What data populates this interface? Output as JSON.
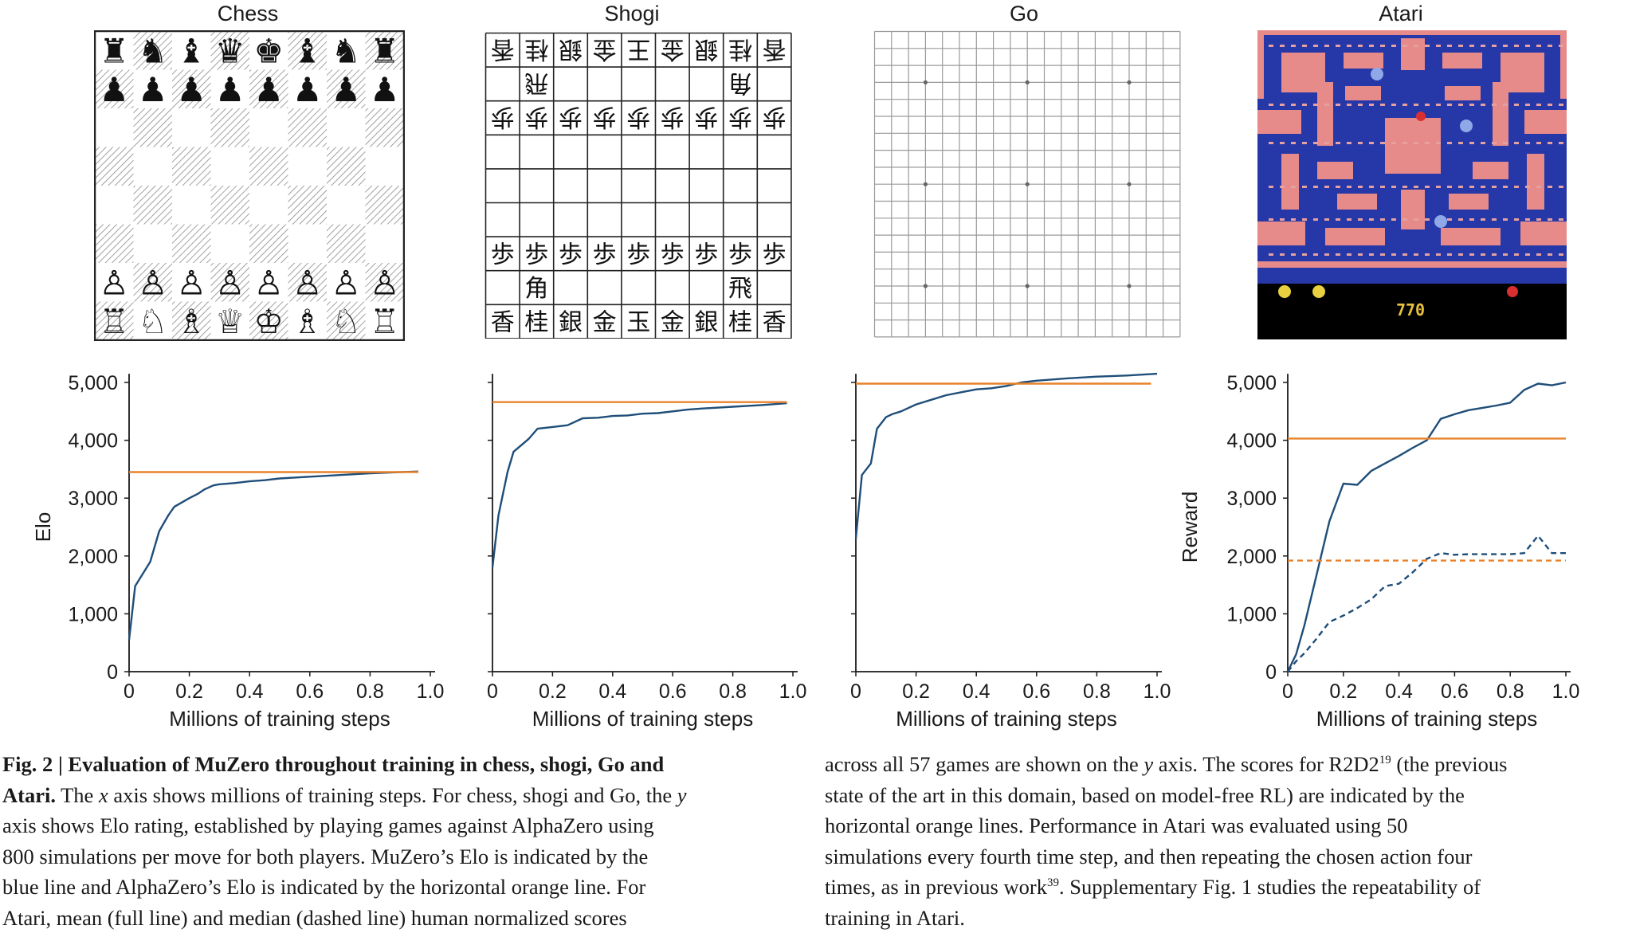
{
  "panels": {
    "chess": {
      "title": "Chess"
    },
    "shogi": {
      "title": "Shogi"
    },
    "go": {
      "title": "Go"
    },
    "atari": {
      "title": "Atari",
      "score": "770"
    }
  },
  "chess_board": {
    "black_back": [
      "♜",
      "♞",
      "♝",
      "♛",
      "♚",
      "♝",
      "♞",
      "♜"
    ],
    "black_pawn": "♟",
    "white_back": [
      "♖",
      "♘",
      "♗",
      "♕",
      "♔",
      "♗",
      "♘",
      "♖"
    ],
    "white_pawn": "♙"
  },
  "shogi_board": {
    "back_rank": [
      "香",
      "桂",
      "銀",
      "金",
      "玉",
      "金",
      "銀",
      "桂",
      "香"
    ],
    "top_back_rank": [
      "香",
      "桂",
      "銀",
      "金",
      "王",
      "金",
      "銀",
      "桂",
      "香"
    ],
    "pawn": "歩",
    "bishop": "角",
    "rook": "飛"
  },
  "colors": {
    "muzero": "#1f4e79",
    "reference": "#e8822a",
    "atari_bg": "#2638a8",
    "atari_wall": "#e68a8a"
  },
  "chart_data": [
    {
      "type": "line",
      "panel": "Chess",
      "xlabel": "Millions of training steps",
      "ylabel": "Elo",
      "xlim": [
        0,
        1.0
      ],
      "ylim": [
        0,
        5000
      ],
      "xticks": [
        "0",
        "0.2",
        "0.4",
        "0.6",
        "0.8",
        "1.0"
      ],
      "yticks": [
        "0",
        "1,000",
        "2,000",
        "3,000",
        "4,000",
        "5,000"
      ],
      "show_yticks": true,
      "series": [
        {
          "style": "solid",
          "color": "#1f4e79",
          "x": [
            0,
            0.02,
            0.07,
            0.1,
            0.13,
            0.15,
            0.2,
            0.23,
            0.25,
            0.28,
            0.3,
            0.35,
            0.4,
            0.45,
            0.5,
            0.6,
            0.7,
            0.8,
            0.9,
            0.96
          ],
          "y": [
            550,
            1480,
            1900,
            2430,
            2700,
            2850,
            3000,
            3080,
            3150,
            3220,
            3240,
            3260,
            3290,
            3310,
            3340,
            3370,
            3400,
            3430,
            3450,
            3460
          ]
        },
        {
          "style": "solid",
          "color": "#e8822a",
          "x": [
            0,
            0.96
          ],
          "y": [
            3450,
            3450
          ]
        }
      ]
    },
    {
      "type": "line",
      "panel": "Shogi",
      "xlabel": "Millions of training steps",
      "ylabel": "",
      "xlim": [
        0,
        1.0
      ],
      "ylim": [
        0,
        5000
      ],
      "xticks": [
        "0",
        "0.2",
        "0.4",
        "0.6",
        "0.8",
        "1.0"
      ],
      "show_yticks": false,
      "series": [
        {
          "style": "solid",
          "color": "#1f4e79",
          "x": [
            0,
            0.02,
            0.05,
            0.07,
            0.12,
            0.15,
            0.2,
            0.25,
            0.3,
            0.35,
            0.4,
            0.45,
            0.5,
            0.55,
            0.6,
            0.65,
            0.7,
            0.8,
            0.9,
            0.98
          ],
          "y": [
            1800,
            2700,
            3450,
            3800,
            4020,
            4200,
            4230,
            4260,
            4380,
            4390,
            4420,
            4430,
            4460,
            4470,
            4500,
            4530,
            4550,
            4580,
            4610,
            4640
          ]
        },
        {
          "style": "solid",
          "color": "#e8822a",
          "x": [
            0,
            0.98
          ],
          "y": [
            4660,
            4660
          ]
        }
      ]
    },
    {
      "type": "line",
      "panel": "Go",
      "xlabel": "Millions of training steps",
      "ylabel": "",
      "xlim": [
        0,
        1.0
      ],
      "ylim": [
        0,
        5000
      ],
      "xticks": [
        "0",
        "0.2",
        "0.4",
        "0.6",
        "0.8",
        "1.0"
      ],
      "show_yticks": false,
      "series": [
        {
          "style": "solid",
          "color": "#1f4e79",
          "x": [
            0,
            0.02,
            0.05,
            0.07,
            0.1,
            0.12,
            0.15,
            0.2,
            0.25,
            0.3,
            0.35,
            0.4,
            0.45,
            0.5,
            0.55,
            0.6,
            0.7,
            0.8,
            0.9,
            1.0
          ],
          "y": [
            2300,
            3400,
            3600,
            4200,
            4400,
            4450,
            4500,
            4620,
            4700,
            4780,
            4830,
            4880,
            4900,
            4940,
            5000,
            5030,
            5070,
            5100,
            5120,
            5150
          ]
        },
        {
          "style": "solid",
          "color": "#e8822a",
          "x": [
            0,
            0.98
          ],
          "y": [
            4980,
            4980
          ]
        }
      ]
    },
    {
      "type": "line",
      "panel": "Atari",
      "xlabel": "Millions of training steps",
      "ylabel": "Reward",
      "xlim": [
        0,
        1.0
      ],
      "ylim": [
        0,
        5000
      ],
      "xticks": [
        "0",
        "0.2",
        "0.4",
        "0.6",
        "0.8",
        "1.0"
      ],
      "yticks": [
        "0",
        "1,000",
        "2,000",
        "3,000",
        "4,000",
        "5,000"
      ],
      "show_yticks": true,
      "series": [
        {
          "style": "solid",
          "color": "#1f4e79",
          "x": [
            0,
            0.03,
            0.06,
            0.1,
            0.15,
            0.2,
            0.25,
            0.3,
            0.35,
            0.4,
            0.45,
            0.5,
            0.55,
            0.6,
            0.65,
            0.7,
            0.75,
            0.8,
            0.85,
            0.9,
            0.95,
            1.0
          ],
          "y": [
            0,
            300,
            800,
            1600,
            2600,
            3250,
            3230,
            3470,
            3600,
            3730,
            3870,
            4000,
            4370,
            4450,
            4520,
            4560,
            4600,
            4650,
            4870,
            4980,
            4950,
            5000
          ]
        },
        {
          "style": "dashed",
          "color": "#1f4e79",
          "x": [
            0,
            0.03,
            0.06,
            0.1,
            0.15,
            0.2,
            0.25,
            0.3,
            0.35,
            0.4,
            0.45,
            0.5,
            0.55,
            0.6,
            0.65,
            0.7,
            0.75,
            0.8,
            0.85,
            0.9,
            0.95,
            1.0
          ],
          "y": [
            0,
            180,
            320,
            550,
            860,
            970,
            1100,
            1250,
            1480,
            1520,
            1720,
            1950,
            2050,
            2020,
            2030,
            2030,
            2030,
            2030,
            2050,
            2350,
            2050,
            2050
          ]
        },
        {
          "style": "solid",
          "color": "#e8822a",
          "x": [
            0,
            1.0
          ],
          "y": [
            4030,
            4030
          ]
        },
        {
          "style": "dashed",
          "color": "#e8822a",
          "x": [
            0,
            1.0
          ],
          "y": [
            1920,
            1920
          ]
        }
      ]
    }
  ],
  "caption": {
    "left": {
      "fig": "Fig. 2",
      "sep": " | ",
      "bold_l1": "Evaluation of MuZero throughout training in chess, shogi, Go and",
      "bold_l2": "Atari.",
      "l2_a": " The ",
      "l2_x": "x",
      "l2_b": " axis shows millions of training steps. For chess, shogi and Go, the ",
      "l2_y": "y",
      "l3": "axis shows Elo rating, established by playing games against AlphaZero using",
      "l4": "800 simulations per move for both players. MuZero’s Elo is indicated by the",
      "l5": "blue line and AlphaZero’s Elo is indicated by the horizontal orange line. For",
      "l6": "Atari, mean (full line) and median (dashed line) human normalized scores"
    },
    "right": {
      "l1_a": "across all 57 games are shown on the ",
      "l1_y": "y",
      "l1_b": " axis. The scores for R2D2",
      "l1_ref": "19",
      "l1_c": " (the previous",
      "l2": "state of the art in this domain, based on model-free RL) are indicated by the",
      "l3": "horizontal orange lines. Performance in Atari was evaluated using 50",
      "l4": "simulations every fourth time step, and then repeating the chosen action four",
      "l5_a": "times, as in previous work",
      "l5_ref": "39",
      "l5_b": ". Supplementary Fig. 1 studies the repeatability of",
      "l6": "training in Atari."
    }
  }
}
